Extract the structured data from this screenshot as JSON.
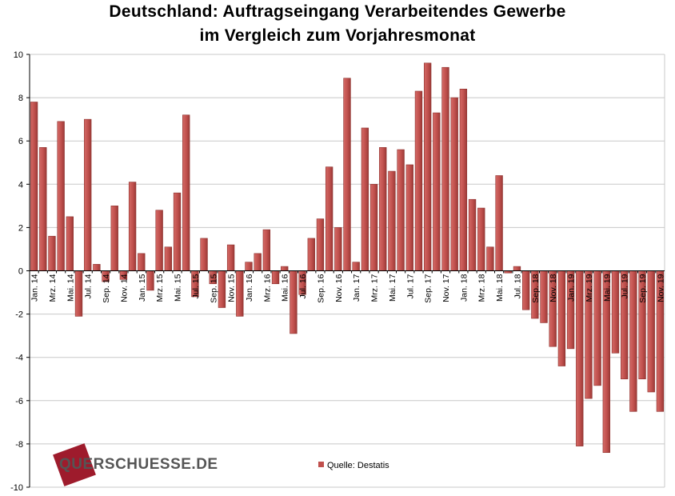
{
  "title_line1": "Deutschland: Auftragseingang Verarbeitendes Gewerbe",
  "title_line2": "im Vergleich zum Vorjahresmonat",
  "logo_text": "QUERSCHUESSE.DE",
  "colors": {
    "bar": "#c0504d",
    "bar_dark": "#8c2f2c",
    "logo_block": "#9e1b2c"
  },
  "chart_data": {
    "type": "bar",
    "title": "Deutschland: Auftragseingang Verarbeitendes Gewerbe im Vergleich zum Vorjahresmonat",
    "ylim": [
      -10,
      10
    ],
    "yticks": [
      10,
      8,
      6,
      4,
      2,
      0,
      -2,
      -4,
      -6,
      -8,
      -10
    ],
    "grid": true,
    "legend_position": "bottom",
    "categories": [
      "Jan. 14",
      "Feb. 14",
      "Mrz. 14",
      "Apr. 14",
      "Mai. 14",
      "Jun. 14",
      "Jul. 14",
      "Aug. 14",
      "Sep. 14",
      "Okt. 14",
      "Nov. 14",
      "Dez. 14",
      "Jan. 15",
      "Feb. 15",
      "Mrz. 15",
      "Apr. 15",
      "Mai. 15",
      "Jun. 15",
      "Jul. 15",
      "Aug. 15",
      "Sep. 15",
      "Okt. 15",
      "Nov. 15",
      "Dez. 15",
      "Jan. 16",
      "Feb. 16",
      "Mrz. 16",
      "Apr. 16",
      "Mai. 16",
      "Jun. 16",
      "Jul. 16",
      "Aug. 16",
      "Sep. 16",
      "Okt. 16",
      "Nov. 16",
      "Dez. 16",
      "Jan. 17",
      "Feb. 17",
      "Mrz. 17",
      "Apr. 17",
      "Mai. 17",
      "Jun. 17",
      "Jul. 17",
      "Aug. 17",
      "Sep. 17",
      "Okt. 17",
      "Nov. 17",
      "Dez. 17",
      "Jan. 18",
      "Feb. 18",
      "Mrz. 18",
      "Apr. 18",
      "Mai. 18",
      "Jun. 18",
      "Jul. 18",
      "Aug. 18",
      "Sep. 18",
      "Okt. 18",
      "Nov. 18",
      "Dez. 18",
      "Jan. 19",
      "Feb. 19",
      "Mrz. 19",
      "Apr. 19",
      "Mai. 19",
      "Jun. 19",
      "Jul. 19",
      "Aug. 19",
      "Sep. 19",
      "Okt. 19",
      "Nov. 19"
    ],
    "label_every": 2,
    "series": [
      {
        "name": "Quelle: Destatis",
        "values": [
          7.8,
          5.7,
          1.6,
          6.9,
          2.5,
          -2.1,
          7.0,
          0.3,
          -0.5,
          3.0,
          -0.4,
          4.1,
          0.8,
          -0.9,
          2.8,
          1.1,
          3.6,
          7.2,
          -1.2,
          1.5,
          -0.6,
          -1.7,
          1.2,
          -2.1,
          0.4,
          0.8,
          1.9,
          -0.6,
          0.2,
          -2.9,
          -1.1,
          1.5,
          2.4,
          4.8,
          2.0,
          8.9,
          0.4,
          6.6,
          4.0,
          5.7,
          4.6,
          5.6,
          4.9,
          8.3,
          9.6,
          7.3,
          9.4,
          8.0,
          8.4,
          3.3,
          2.9,
          1.1,
          4.4,
          -0.1,
          0.2,
          -1.8,
          -2.2,
          -2.4,
          -3.5,
          -4.4,
          -3.6,
          -8.1,
          -5.9,
          -5.3,
          -8.4,
          -3.8,
          -5.0,
          -6.5,
          -5.0,
          -5.6,
          -6.5
        ]
      }
    ]
  }
}
